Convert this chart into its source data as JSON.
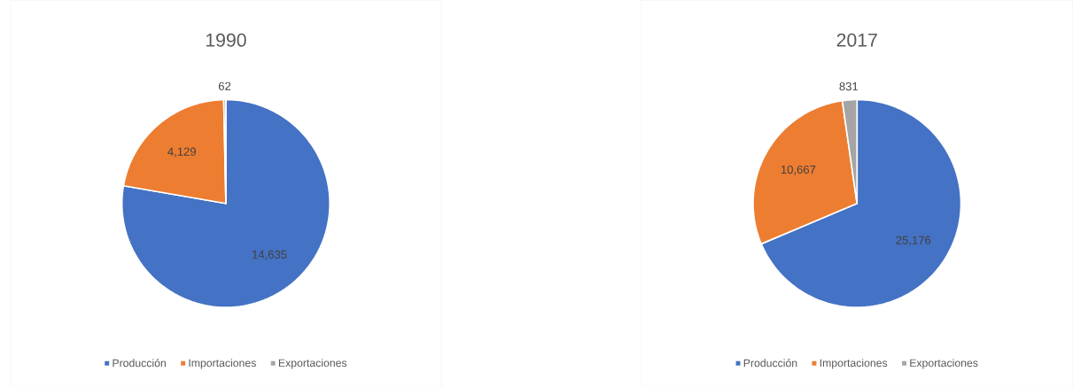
{
  "chart_data": [
    {
      "type": "pie",
      "title": "1990",
      "categories": [
        "Producción",
        "Importaciones",
        "Exportaciones"
      ],
      "values": [
        14635,
        4129,
        62
      ],
      "value_labels": [
        "14,635",
        "4,129",
        "62"
      ],
      "colors": [
        "#4472c4",
        "#ed7d31",
        "#a5a5a5"
      ],
      "legend": "bottom"
    },
    {
      "type": "pie",
      "title": "2017",
      "categories": [
        "Producción",
        "Importaciones",
        "Exportaciones"
      ],
      "values": [
        25176,
        10667,
        831
      ],
      "value_labels": [
        "25,176",
        "10,667",
        "831"
      ],
      "colors": [
        "#4472c4",
        "#ed7d31",
        "#a5a5a5"
      ],
      "legend": "bottom"
    }
  ]
}
